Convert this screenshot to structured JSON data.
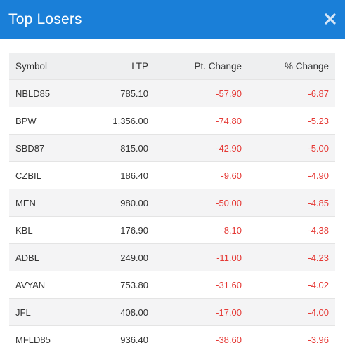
{
  "colors": {
    "header_bg": "#1a7fd8",
    "negative": "#e53935"
  },
  "modal": {
    "title": "Top Losers",
    "close_icon": "close-icon"
  },
  "table": {
    "headers": {
      "symbol": "Symbol",
      "ltp": "LTP",
      "pt_change": "Pt. Change",
      "pct_change": "% Change"
    },
    "rows": [
      {
        "symbol": "NBLD85",
        "ltp": "785.10",
        "pt_change": "-57.90",
        "pct_change": "-6.87"
      },
      {
        "symbol": "BPW",
        "ltp": "1,356.00",
        "pt_change": "-74.80",
        "pct_change": "-5.23"
      },
      {
        "symbol": "SBD87",
        "ltp": "815.00",
        "pt_change": "-42.90",
        "pct_change": "-5.00"
      },
      {
        "symbol": "CZBIL",
        "ltp": "186.40",
        "pt_change": "-9.60",
        "pct_change": "-4.90"
      },
      {
        "symbol": "MEN",
        "ltp": "980.00",
        "pt_change": "-50.00",
        "pct_change": "-4.85"
      },
      {
        "symbol": "KBL",
        "ltp": "176.90",
        "pt_change": "-8.10",
        "pct_change": "-4.38"
      },
      {
        "symbol": "ADBL",
        "ltp": "249.00",
        "pt_change": "-11.00",
        "pct_change": "-4.23"
      },
      {
        "symbol": "AVYAN",
        "ltp": "753.80",
        "pt_change": "-31.60",
        "pct_change": "-4.02"
      },
      {
        "symbol": "JFL",
        "ltp": "408.00",
        "pt_change": "-17.00",
        "pct_change": "-4.00"
      },
      {
        "symbol": "MFLD85",
        "ltp": "936.40",
        "pt_change": "-38.60",
        "pct_change": "-3.96"
      }
    ]
  }
}
